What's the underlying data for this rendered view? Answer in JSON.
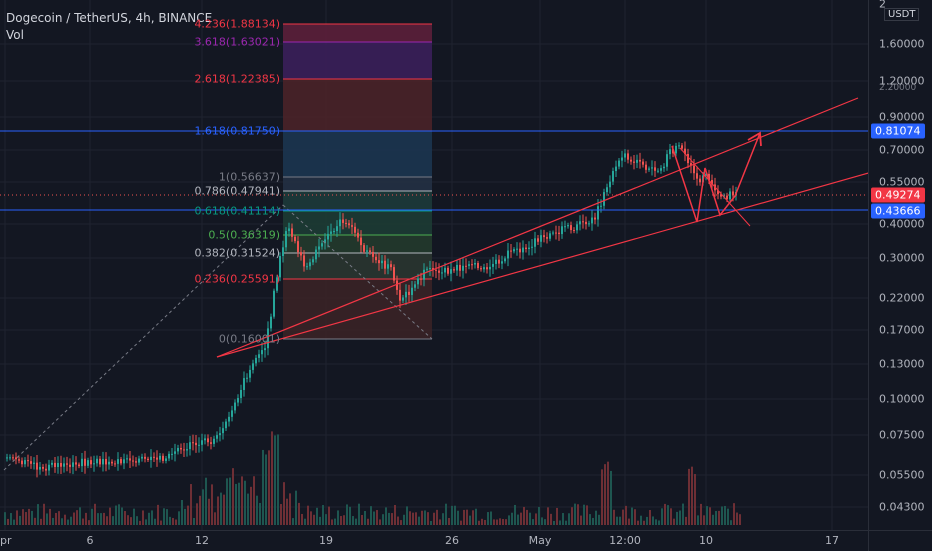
{
  "legend": {
    "title": "Dogecoin / TetherUS, 4h, BINANCE",
    "volume": "Vol"
  },
  "y_axis": {
    "unit": "USDT",
    "ticks": [
      "1.60000",
      "1.20000",
      "0.90000",
      "0.70000",
      "0.55000",
      "0.40000",
      "0.30000",
      "0.22000",
      "0.17000",
      "0.13000",
      "0.10000",
      "0.07500",
      "0.05500",
      "0.04300"
    ],
    "partial_top": [
      "2",
      "2.20000"
    ]
  },
  "price_tags": [
    {
      "label": "0.81074",
      "color": "#2962ff"
    },
    {
      "label": "0.49274",
      "color": "#f23645"
    },
    {
      "label": "0.43666",
      "color": "#2962ff"
    }
  ],
  "x_axis": {
    "ticks": [
      "pr",
      "6",
      "12",
      "19",
      "26",
      "May",
      "12:00",
      "10",
      "17"
    ]
  },
  "fib_levels": [
    {
      "label": "4.236(1.88134)",
      "color": "#f23645"
    },
    {
      "label": "3.618(1.63021)",
      "color": "#9c27b0"
    },
    {
      "label": "2.618(1.22385)",
      "color": "#f23645"
    },
    {
      "label": "1.618(0.81750)",
      "color": "#2962ff"
    },
    {
      "label": "1(0.56637)",
      "color": "#787b86"
    },
    {
      "label": "0.786(0.47941)",
      "color": "#b2b5be"
    },
    {
      "label": "0.618(0.41114)",
      "color": "#089981"
    },
    {
      "label": "0.5(0.36319)",
      "color": "#4caf50"
    },
    {
      "label": "0.382(0.31524)",
      "color": "#b2b5be"
    },
    {
      "label": "0.236(0.25591)",
      "color": "#f23645"
    },
    {
      "label": "0(0.16001)",
      "color": "#787b86"
    }
  ],
  "colors": {
    "up": "#26a69a",
    "down": "#ef5350",
    "channel": "#f23645",
    "hline": "#2962ff",
    "grid": "#1f2330"
  }
}
